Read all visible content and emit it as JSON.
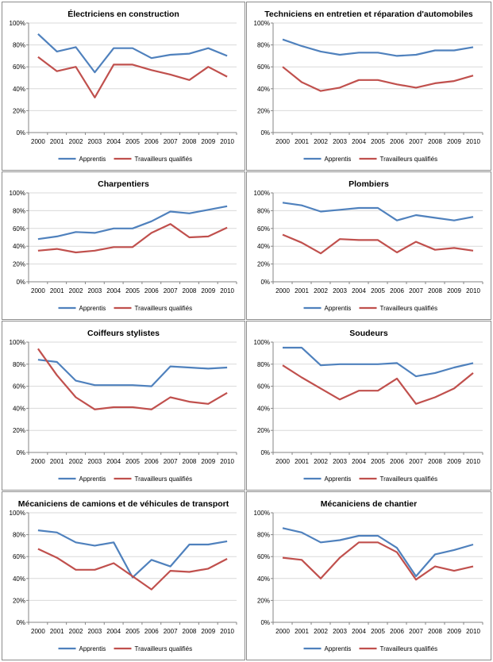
{
  "chart_data": [
    {
      "type": "line",
      "title": "Électriciens en construction",
      "categories": [
        "2000",
        "2001",
        "2002",
        "2003",
        "2004",
        "2005",
        "2006",
        "2007",
        "2008",
        "2009",
        "2010"
      ],
      "ylim": [
        0,
        100
      ],
      "yticks": [
        "0%",
        "20%",
        "40%",
        "60%",
        "80%",
        "100%"
      ],
      "series": [
        {
          "name": "Apprentis",
          "color": "#4f81bd",
          "values": [
            90,
            74,
            78,
            55,
            77,
            77,
            68,
            71,
            72,
            77,
            70
          ]
        },
        {
          "name": "Travailleurs qualifiés",
          "color": "#c0504d",
          "values": [
            69,
            56,
            60,
            32,
            62,
            62,
            57,
            53,
            48,
            60,
            51
          ]
        }
      ]
    },
    {
      "type": "line",
      "title": "Techniciens en entretien et réparation d'automobiles",
      "categories": [
        "2000",
        "2001",
        "2002",
        "2003",
        "2004",
        "2005",
        "2006",
        "2007",
        "2008",
        "2009",
        "2010"
      ],
      "ylim": [
        0,
        100
      ],
      "yticks": [
        "0%",
        "20%",
        "40%",
        "60%",
        "80%",
        "100%"
      ],
      "series": [
        {
          "name": "Apprentis",
          "color": "#4f81bd",
          "values": [
            85,
            79,
            74,
            71,
            73,
            73,
            70,
            71,
            75,
            75,
            78
          ]
        },
        {
          "name": "Travailleurs qualifiés",
          "color": "#c0504d",
          "values": [
            60,
            46,
            38,
            41,
            48,
            48,
            44,
            41,
            45,
            47,
            52
          ]
        }
      ]
    },
    {
      "type": "line",
      "title": "Charpentiers",
      "categories": [
        "2000",
        "2001",
        "2002",
        "2003",
        "2004",
        "2005",
        "2006",
        "2007",
        "2008",
        "2009",
        "2010"
      ],
      "ylim": [
        0,
        100
      ],
      "yticks": [
        "0%",
        "20%",
        "40%",
        "60%",
        "80%",
        "100%"
      ],
      "series": [
        {
          "name": "Apprentis",
          "color": "#4f81bd",
          "values": [
            48,
            51,
            56,
            55,
            60,
            60,
            68,
            79,
            77,
            81,
            85
          ]
        },
        {
          "name": "Travailleurs qualifiés",
          "color": "#c0504d",
          "values": [
            35,
            37,
            33,
            35,
            39,
            39,
            55,
            65,
            50,
            51,
            61
          ]
        }
      ]
    },
    {
      "type": "line",
      "title": "Plombiers",
      "categories": [
        "2000",
        "2001",
        "2002",
        "2003",
        "2004",
        "2005",
        "2006",
        "2007",
        "2008",
        "2009",
        "2010"
      ],
      "ylim": [
        0,
        100
      ],
      "yticks": [
        "0%",
        "20%",
        "40%",
        "60%",
        "80%",
        "100%"
      ],
      "series": [
        {
          "name": "Apprentis",
          "color": "#4f81bd",
          "values": [
            89,
            86,
            79,
            81,
            83,
            83,
            69,
            75,
            72,
            69,
            73
          ]
        },
        {
          "name": "Travailleurs qualifiés",
          "color": "#c0504d",
          "values": [
            53,
            44,
            32,
            48,
            47,
            47,
            33,
            45,
            36,
            38,
            35
          ]
        }
      ]
    },
    {
      "type": "line",
      "title": "Coiffeurs stylistes",
      "categories": [
        "2000",
        "2001",
        "2002",
        "2003",
        "2004",
        "2005",
        "2006",
        "2007",
        "2008",
        "2009",
        "2010"
      ],
      "ylim": [
        0,
        100
      ],
      "yticks": [
        "0%",
        "20%",
        "40%",
        "60%",
        "80%",
        "100%"
      ],
      "series": [
        {
          "name": "Apprentis",
          "color": "#4f81bd",
          "values": [
            84,
            82,
            65,
            61,
            61,
            61,
            60,
            78,
            77,
            76,
            77
          ]
        },
        {
          "name": "Travailleurs qualifiés",
          "color": "#c0504d",
          "values": [
            94,
            70,
            50,
            39,
            41,
            41,
            39,
            50,
            46,
            44,
            54
          ]
        }
      ]
    },
    {
      "type": "line",
      "title": "Soudeurs",
      "categories": [
        "2000",
        "2001",
        "2002",
        "2003",
        "2004",
        "2005",
        "2006",
        "2007",
        "2008",
        "2009",
        "2010"
      ],
      "ylim": [
        0,
        100
      ],
      "yticks": [
        "0%",
        "20%",
        "40%",
        "60%",
        "80%",
        "100%"
      ],
      "series": [
        {
          "name": "Apprentis",
          "color": "#4f81bd",
          "values": [
            95,
            95,
            79,
            80,
            80,
            80,
            81,
            69,
            72,
            77,
            81
          ]
        },
        {
          "name": "Travailleurs qualifiés",
          "color": "#c0504d",
          "values": [
            79,
            68,
            58,
            48,
            56,
            56,
            67,
            44,
            50,
            58,
            72
          ]
        }
      ]
    },
    {
      "type": "line",
      "title": "Mécaniciens de camions et de véhicules de transport",
      "categories": [
        "2000",
        "2001",
        "2002",
        "2003",
        "2004",
        "2005",
        "2006",
        "2007",
        "2008",
        "2009",
        "2010"
      ],
      "ylim": [
        0,
        100
      ],
      "yticks": [
        "0%",
        "20%",
        "40%",
        "60%",
        "80%",
        "100%"
      ],
      "series": [
        {
          "name": "Apprentis",
          "color": "#4f81bd",
          "values": [
            84,
            82,
            73,
            70,
            73,
            41,
            57,
            51,
            71,
            71,
            74
          ]
        },
        {
          "name": "Travailleurs qualifiés",
          "color": "#c0504d",
          "values": [
            67,
            59,
            48,
            48,
            54,
            42,
            30,
            47,
            46,
            49,
            58
          ]
        }
      ]
    },
    {
      "type": "line",
      "title": "Mécaniciens de chantier",
      "categories": [
        "2000",
        "2001",
        "2002",
        "2003",
        "2004",
        "2005",
        "2006",
        "2007",
        "2008",
        "2009",
        "2010"
      ],
      "ylim": [
        0,
        100
      ],
      "yticks": [
        "0%",
        "20%",
        "40%",
        "60%",
        "80%",
        "100%"
      ],
      "series": [
        {
          "name": "Apprentis",
          "color": "#4f81bd",
          "values": [
            86,
            82,
            73,
            75,
            79,
            79,
            68,
            42,
            62,
            66,
            71
          ]
        },
        {
          "name": "Travailleurs qualifiés",
          "color": "#c0504d",
          "values": [
            59,
            57,
            40,
            59,
            73,
            73,
            64,
            39,
            51,
            47,
            51
          ]
        }
      ]
    }
  ]
}
